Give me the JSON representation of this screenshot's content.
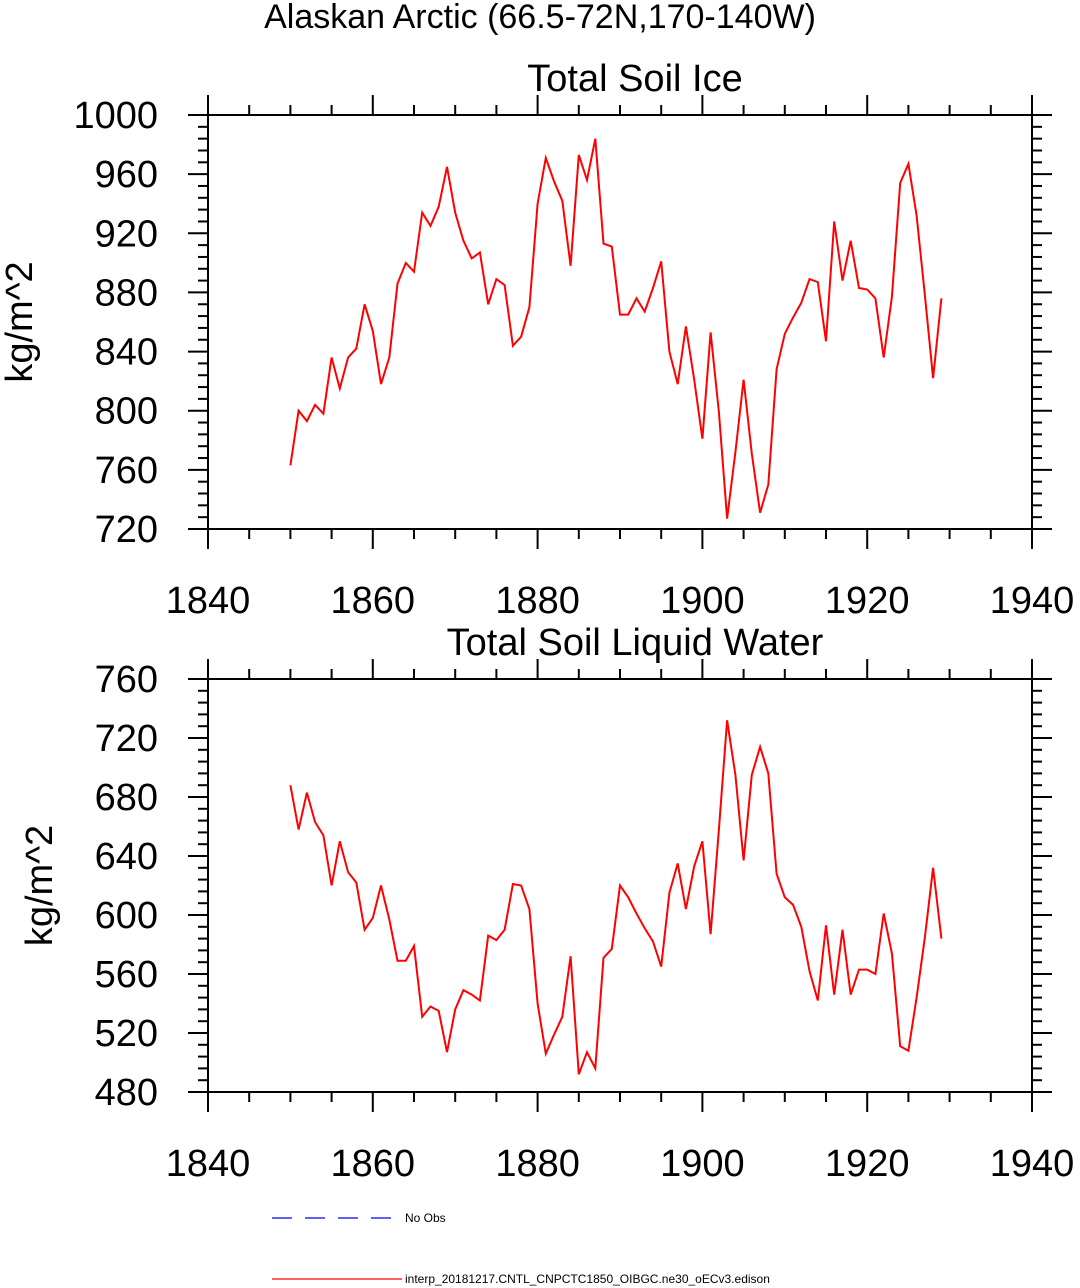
{
  "title": "Alaskan Arctic (66.5-72N,170-140W)",
  "legend": {
    "items": [
      {
        "label": "No Obs",
        "color": "#0000ff",
        "style": "dashed"
      },
      {
        "label": "interp_20181217.CNTL_CNPCTC1850_OIBGC.ne30_oECv3.edison",
        "color": "#ff0000",
        "style": "solid"
      }
    ]
  },
  "chart_data": [
    {
      "type": "line",
      "title": "Total Soil Ice",
      "xlabel": "",
      "ylabel": "kg/m^2",
      "xlim": [
        1840,
        1940
      ],
      "ylim": [
        720,
        1000
      ],
      "xticks": [
        1840,
        1860,
        1880,
        1900,
        1920,
        1940
      ],
      "yticks": [
        720,
        760,
        800,
        840,
        880,
        920,
        960,
        1000
      ],
      "grid": false,
      "x_start": 1850,
      "series": [
        {
          "name": "interp_20181217.CNTL_CNPCTC1850_OIBGC.ne30_oECv3.edison",
          "color": "#ff0000",
          "values": [
            763,
            800,
            793,
            804,
            798,
            836,
            815,
            836,
            842,
            872,
            854,
            818,
            836,
            886,
            900,
            894,
            934,
            925,
            938,
            965,
            934,
            915,
            903,
            907,
            872,
            889,
            885,
            844,
            850,
            870,
            940,
            971,
            955,
            942,
            898,
            973,
            956,
            984,
            913,
            911,
            865,
            865,
            876,
            867,
            883,
            901,
            840,
            818,
            857,
            821,
            781,
            853,
            799,
            727,
            772,
            821,
            771,
            731,
            750,
            828,
            852,
            863,
            873,
            889,
            887,
            847,
            928,
            888,
            915,
            883,
            882,
            876,
            836,
            877,
            954,
            967,
            932,
            878,
            822,
            876
          ]
        }
      ]
    },
    {
      "type": "line",
      "title": "Total Soil Liquid Water",
      "xlabel": "",
      "ylabel": "kg/m^2",
      "xlim": [
        1840,
        1940
      ],
      "ylim": [
        480,
        760
      ],
      "xticks": [
        1840,
        1860,
        1880,
        1900,
        1920,
        1940
      ],
      "yticks": [
        480,
        520,
        560,
        600,
        640,
        680,
        720,
        760
      ],
      "grid": false,
      "x_start": 1850,
      "series": [
        {
          "name": "interp_20181217.CNTL_CNPCTC1850_OIBGC.ne30_oECv3.edison",
          "color": "#ff0000",
          "values": [
            688,
            658,
            683,
            663,
            654,
            620,
            650,
            629,
            622,
            590,
            598,
            620,
            597,
            569,
            569,
            579,
            531,
            538,
            535,
            507,
            536,
            549,
            546,
            542,
            586,
            583,
            590,
            621,
            620,
            604,
            540,
            506,
            519,
            531,
            572,
            492,
            507,
            496,
            571,
            577,
            620,
            612,
            601,
            591,
            582,
            565,
            615,
            635,
            604,
            633,
            650,
            587,
            658,
            732,
            695,
            637,
            695,
            714,
            696,
            628,
            612,
            607,
            592,
            562,
            542,
            593,
            546,
            590,
            546,
            563,
            563,
            560,
            601,
            574,
            511,
            508,
            544,
            585,
            632,
            584
          ]
        }
      ]
    }
  ]
}
